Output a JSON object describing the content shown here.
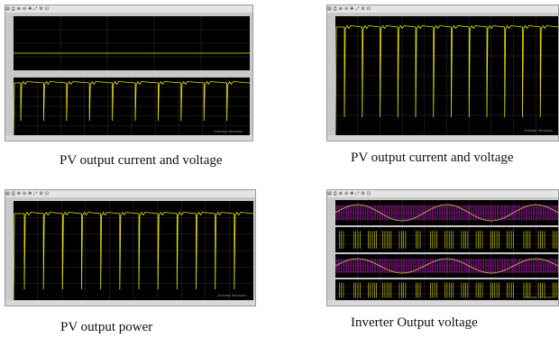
{
  "captions": {
    "top_left": "PV output current and voltage",
    "top_right": "PV output current and voltage",
    "bottom_left": "PV output power",
    "bottom_right": "Inverter Output voltage"
  },
  "toolbar_icons": [
    "open-icon",
    "print-icon",
    "zoom-in-icon",
    "zoom-out-icon",
    "pan-icon",
    "autoscale-icon",
    "params-icon",
    "lock-icon"
  ],
  "watermark": "Activate Windows",
  "colors": {
    "trace_yellow": "#e8e300",
    "trace_magenta": "#d020d0",
    "axes_bg": "#000000",
    "frame": "#c8c8c8"
  }
}
